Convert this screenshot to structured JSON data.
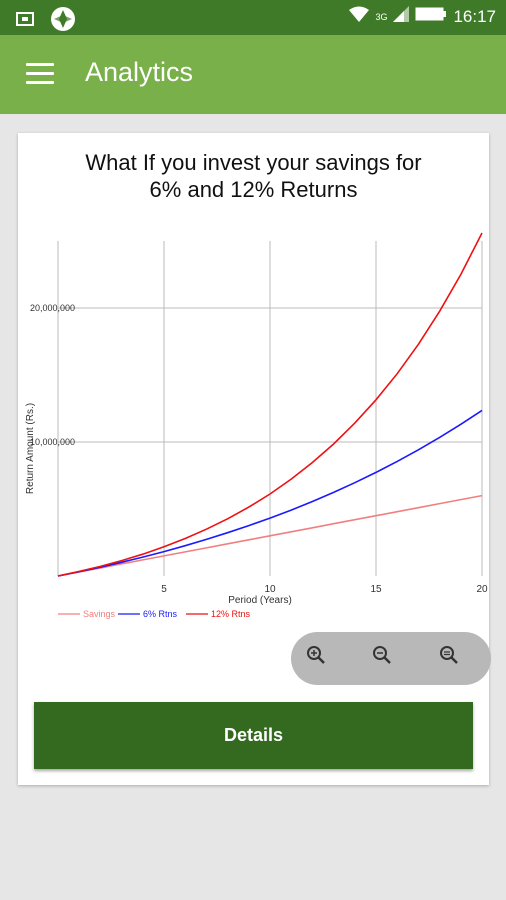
{
  "status_bar": {
    "time": "16:17",
    "network": "3G",
    "icons": [
      "screenshot-icon",
      "pinwheel-icon",
      "wifi-icon",
      "signal-icon",
      "battery-icon"
    ]
  },
  "app_bar": {
    "title": "Analytics",
    "menu_icon": "hamburger-menu-icon",
    "color": "#79b04a"
  },
  "card": {
    "zoom_controls": [
      "zoom-in-icon",
      "zoom-out-icon",
      "zoom-reset-icon"
    ],
    "details_label": "Details",
    "details_color": "#336a20"
  },
  "chart_data": {
    "type": "line",
    "title_line1": "What If you invest your savings for",
    "title_line2": "6% and 12% Returns",
    "xlabel": "Period (Years)",
    "ylabel": "Return Amount (Rs.)",
    "xlim": [
      0,
      20
    ],
    "ylim": [
      0,
      25000000
    ],
    "x_ticks": [
      5,
      10,
      15,
      20
    ],
    "x_tick_labels": [
      "5",
      "10",
      "15",
      "20"
    ],
    "y_ticks": [
      10000000,
      20000000
    ],
    "y_tick_labels": [
      "10,000,000",
      "20,000,000"
    ],
    "grid": true,
    "legend_position": "bottom-left",
    "x": [
      0,
      1,
      2,
      3,
      4,
      5,
      6,
      7,
      8,
      9,
      10,
      11,
      12,
      13,
      14,
      15,
      16,
      17,
      18,
      19,
      20
    ],
    "series": [
      {
        "name": "Savings",
        "color": "#f08080",
        "values": [
          0,
          300000,
          600000,
          900000,
          1200000,
          1500000,
          1800000,
          2100000,
          2400000,
          2700000,
          3000000,
          3300000,
          3600000,
          3900000,
          4200000,
          4500000,
          4800000,
          5100000,
          5400000,
          5700000,
          6000000
        ]
      },
      {
        "name": "6% Rtns",
        "color": "#1a1aff",
        "values": [
          0,
          320000,
          660000,
          1020000,
          1410000,
          1820000,
          2260000,
          2730000,
          3230000,
          3760000,
          4320000,
          4920000,
          5560000,
          6240000,
          6960000,
          7730000,
          8550000,
          9420000,
          10340000,
          11320000,
          12360000
        ]
      },
      {
        "name": "12% Rtns",
        "color": "#ee1111",
        "values": [
          0,
          340000,
          720000,
          1150000,
          1630000,
          2180000,
          2800000,
          3490000,
          4270000,
          5140000,
          6120000,
          7230000,
          8470000,
          9850000,
          11410000,
          13150000,
          15100000,
          17290000,
          19750000,
          22500000,
          25600000
        ]
      }
    ]
  }
}
